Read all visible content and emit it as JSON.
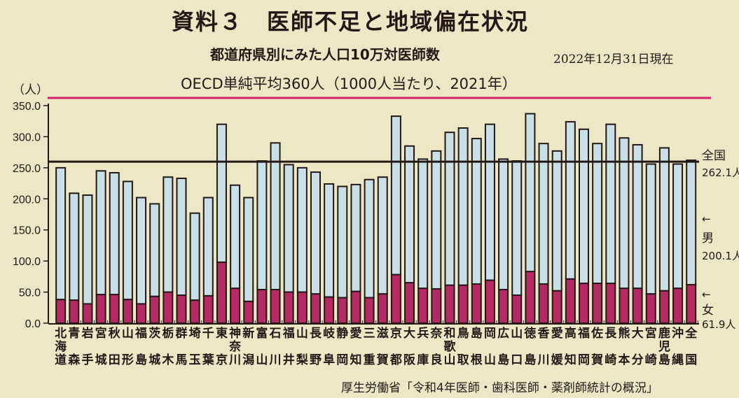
{
  "title": "資料３　医師不足と地域偏在状況",
  "subtitle": "都道府県別にみた人口10万対医師数",
  "date": "2022年12月31日現在",
  "source": "厚生労働省「令和4年医師・歯科医師・薬剤師統計の概況」",
  "colors": {
    "background": "#ECE8C6",
    "male": "#C8E0E6",
    "female": "#B52A63",
    "oecd_line": "#D6226E",
    "axis": "#231815"
  },
  "chart_data": {
    "type": "bar",
    "stacked": true,
    "title": "都道府県別にみた人口10万対医師数",
    "ylabel": "（人）",
    "ylim": [
      0,
      350
    ],
    "yticks": [
      "0.0",
      "50.0",
      "100.0",
      "150.0",
      "200.0",
      "250.0",
      "300.0",
      "350.0"
    ],
    "categories": [
      "北海道",
      "青森",
      "岩手",
      "宮城",
      "秋田",
      "山形",
      "福島",
      "茨城",
      "栃木",
      "群馬",
      "埼玉",
      "千葉",
      "東京",
      "神奈川",
      "新潟",
      "富山",
      "石川",
      "福井",
      "山梨",
      "長野",
      "岐阜",
      "静岡",
      "愛知",
      "三重",
      "滋賀",
      "京都",
      "大阪",
      "兵庫",
      "奈良",
      "和歌山",
      "鳥取",
      "島根",
      "岡山",
      "広島",
      "山口",
      "徳島",
      "香川",
      "愛媛",
      "高知",
      "福岡",
      "佐賀",
      "長崎",
      "熊本",
      "大分",
      "宮崎",
      "鹿児島",
      "沖縄",
      "全国"
    ],
    "series": [
      {
        "name": "女",
        "values": [
          38,
          37,
          31,
          46,
          46,
          38,
          31,
          43,
          50,
          45,
          37,
          44,
          98,
          56,
          35,
          54,
          54,
          50,
          50,
          47,
          42,
          41,
          51,
          41,
          47,
          78,
          65,
          56,
          55,
          61,
          61,
          63,
          69,
          54,
          45,
          83,
          63,
          52,
          71,
          64,
          64,
          64,
          56,
          56,
          47,
          52,
          56,
          61.9
        ]
      },
      {
        "name": "男",
        "values": [
          212,
          172,
          175,
          199,
          196,
          190,
          171,
          149,
          185,
          188,
          140,
          158,
          222,
          166,
          167,
          207,
          236,
          205,
          200,
          196,
          182,
          179,
          172,
          190,
          188,
          255,
          220,
          208,
          222,
          246,
          253,
          234,
          251,
          210,
          216,
          254,
          226,
          225,
          253,
          248,
          225,
          256,
          242,
          231,
          209,
          230,
          200,
          200.1
        ]
      }
    ],
    "totals": [
      250,
      209,
      206,
      245,
      242,
      228,
      202,
      192,
      235,
      233,
      177,
      202,
      320,
      222,
      202,
      261,
      290,
      255,
      250,
      243,
      224,
      220,
      223,
      231,
      235,
      333,
      285,
      264,
      277,
      307,
      314,
      297,
      320,
      264,
      261,
      337,
      289,
      277,
      324,
      312,
      289,
      320,
      298,
      287,
      256,
      282,
      256,
      262.1
    ],
    "reference_lines": [
      {
        "label": "OECD単純平均360人（1000人当たり、2021年）",
        "value": 360
      },
      {
        "label": "全国",
        "value_label": "262.1人",
        "value": 262.1
      }
    ],
    "legend": [
      {
        "label": "男",
        "value_label": "200.1人",
        "arrow": "←"
      },
      {
        "label": "女",
        "value_label": "61.9人",
        "arrow": "←"
      }
    ]
  }
}
